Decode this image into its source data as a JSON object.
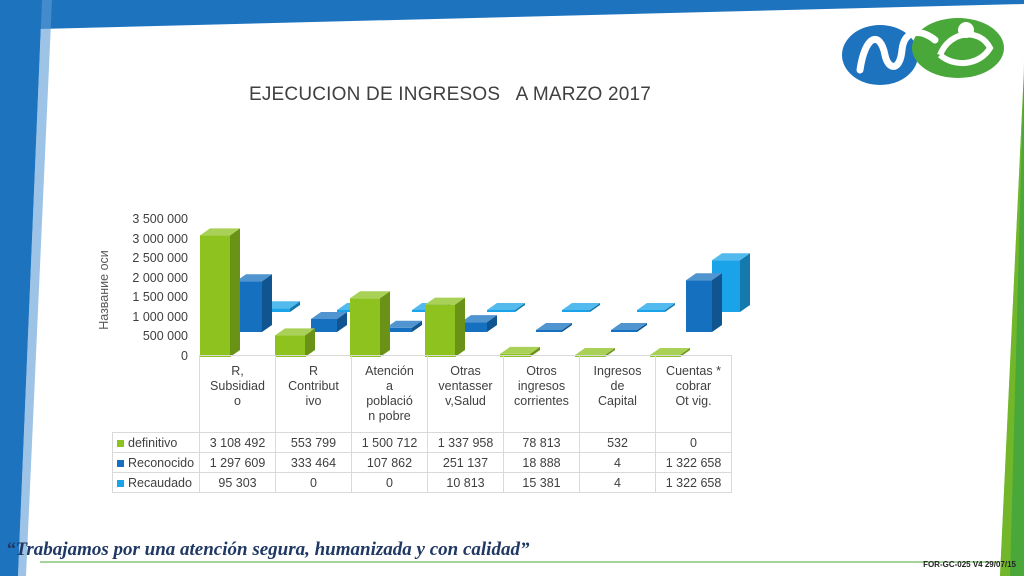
{
  "slide": {
    "slogan": "“Trabajamos por una atención segura, humanizada y con calidad”",
    "footer_code": "FOR-GC-025 V4  29/07/15",
    "logo_name": "hospital-logo"
  },
  "colors": {
    "accent_blue": "#1e73be",
    "accent_green": "#4aa83a",
    "definitivo": "#8dc21f",
    "reconocido": "#1570c0",
    "recaudado": "#1aa3e8"
  },
  "chart_data": {
    "type": "bar",
    "title": "EJECUCION DE INGRESOS   A MARZO 2017",
    "ylabel": "Название оси",
    "ylim": [
      0,
      3500000
    ],
    "yticks": [
      "0",
      "500 000",
      "1 000 000",
      "1 500 000",
      "2 000 000",
      "2 500 000",
      "3 000 000",
      "3 500 000"
    ],
    "categories": [
      "R, Subsidiad o",
      "R Contribut ivo",
      "Atención a població n pobre",
      "Otras ventasser v,Salud",
      "Otros ingresos corrientes",
      "Ingresos de Capital",
      "Cuentas * cobrar Ot vig."
    ],
    "category_lines": [
      [
        "R,",
        "Subsidiad",
        "o"
      ],
      [
        "R",
        "Contribut",
        "ivo"
      ],
      [
        "Atención",
        "a",
        "població",
        "n pobre"
      ],
      [
        "Otras",
        "ventasser",
        "v,Salud"
      ],
      [
        "Otros",
        "ingresos",
        "corrientes"
      ],
      [
        "Ingresos",
        "de",
        "Capital"
      ],
      [
        "Cuentas *",
        "cobrar",
        "Ot vig."
      ]
    ],
    "series": [
      {
        "name": "definitivo",
        "values": [
          3108492,
          553799,
          1500712,
          1337958,
          78813,
          532,
          0
        ],
        "labels": [
          "3 108 492",
          "553 799",
          "1 500 712",
          "1 337 958",
          "78 813",
          "532",
          "0"
        ]
      },
      {
        "name": "Reconocido",
        "values": [
          1297609,
          333464,
          107862,
          251137,
          18888,
          4,
          1322658
        ],
        "labels": [
          "1 297 609",
          "333 464",
          "107 862",
          "251 137",
          "18 888",
          "4",
          "1 322 658"
        ]
      },
      {
        "name": "Recaudado",
        "values": [
          95303,
          0,
          0,
          10813,
          15381,
          4,
          1322658
        ],
        "labels": [
          "95 303",
          "0",
          "0",
          "10 813",
          "15 381",
          "4",
          "1 322 658"
        ]
      }
    ],
    "legend_placement": "table-row-headers",
    "grid": false
  }
}
